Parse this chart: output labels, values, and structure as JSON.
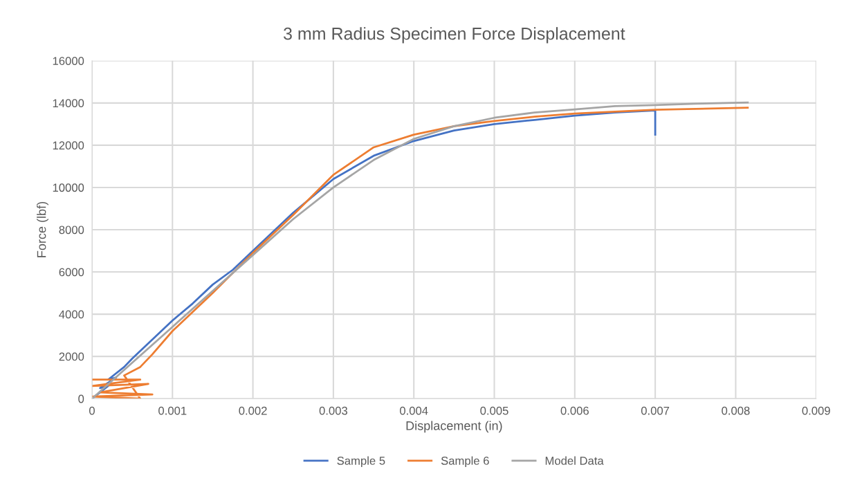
{
  "chart_data": {
    "type": "line",
    "title": "3 mm Radius Specimen Force Displacement",
    "xlabel": "Displacement (in)",
    "ylabel": "Force (lbf)",
    "xlim": [
      0,
      0.009
    ],
    "xticks": [
      0,
      0.001,
      0.002,
      0.003,
      0.004,
      0.005,
      0.006,
      0.007,
      0.008,
      0.009
    ],
    "ylim": [
      0,
      16000
    ],
    "yticks": [
      0,
      2000,
      4000,
      6000,
      8000,
      10000,
      12000,
      14000,
      16000
    ],
    "grid": true,
    "legend": "bottom",
    "marker": "none",
    "line_style": "solid",
    "series": [
      {
        "name": "Sample 5",
        "color": "#4472c4",
        "x": [
          0,
          0.0002,
          0.0001,
          0.0003,
          0.0002,
          0.0004,
          0.0005,
          0.00075,
          0.001,
          0.00125,
          0.0015,
          0.00175,
          0.002,
          0.0025,
          0.003,
          0.0035,
          0.004,
          0.0045,
          0.005,
          0.0055,
          0.006,
          0.0065,
          0.007,
          0.007
        ],
        "values": [
          0,
          600,
          500,
          1000,
          900,
          1500,
          1900,
          2800,
          3700,
          4500,
          5400,
          6100,
          7000,
          8800,
          10400,
          11500,
          12200,
          12700,
          13000,
          13200,
          13400,
          13550,
          13650,
          12500
        ]
      },
      {
        "name": "Sample 6",
        "color": "#ed7d31",
        "x": [
          0,
          0.0006,
          0,
          0.0007,
          0.0001,
          0.00075,
          0,
          0.0006,
          0.0004,
          0.0006,
          0.00075,
          0.001,
          0.0015,
          0.002,
          0.0025,
          0.003,
          0.0035,
          0.004,
          0.0045,
          0.005,
          0.0055,
          0.006,
          0.007,
          0.0075,
          0.00815
        ],
        "values": [
          900,
          900,
          600,
          700,
          300,
          200,
          100,
          0,
          1100,
          1500,
          2100,
          3200,
          5000,
          6900,
          8700,
          10600,
          11900,
          12500,
          12900,
          13150,
          13350,
          13500,
          13680,
          13720,
          13780
        ]
      },
      {
        "name": "Model Data",
        "color": "#a5a5a5",
        "x": [
          0,
          0.0005,
          0.001,
          0.0015,
          0.002,
          0.0025,
          0.003,
          0.0035,
          0.004,
          0.0045,
          0.005,
          0.0055,
          0.006,
          0.0065,
          0.007,
          0.0075,
          0.00815
        ],
        "values": [
          0,
          1700,
          3400,
          5100,
          6800,
          8500,
          10000,
          11300,
          12300,
          12900,
          13300,
          13550,
          13700,
          13850,
          13900,
          13970,
          14020
        ]
      }
    ]
  }
}
